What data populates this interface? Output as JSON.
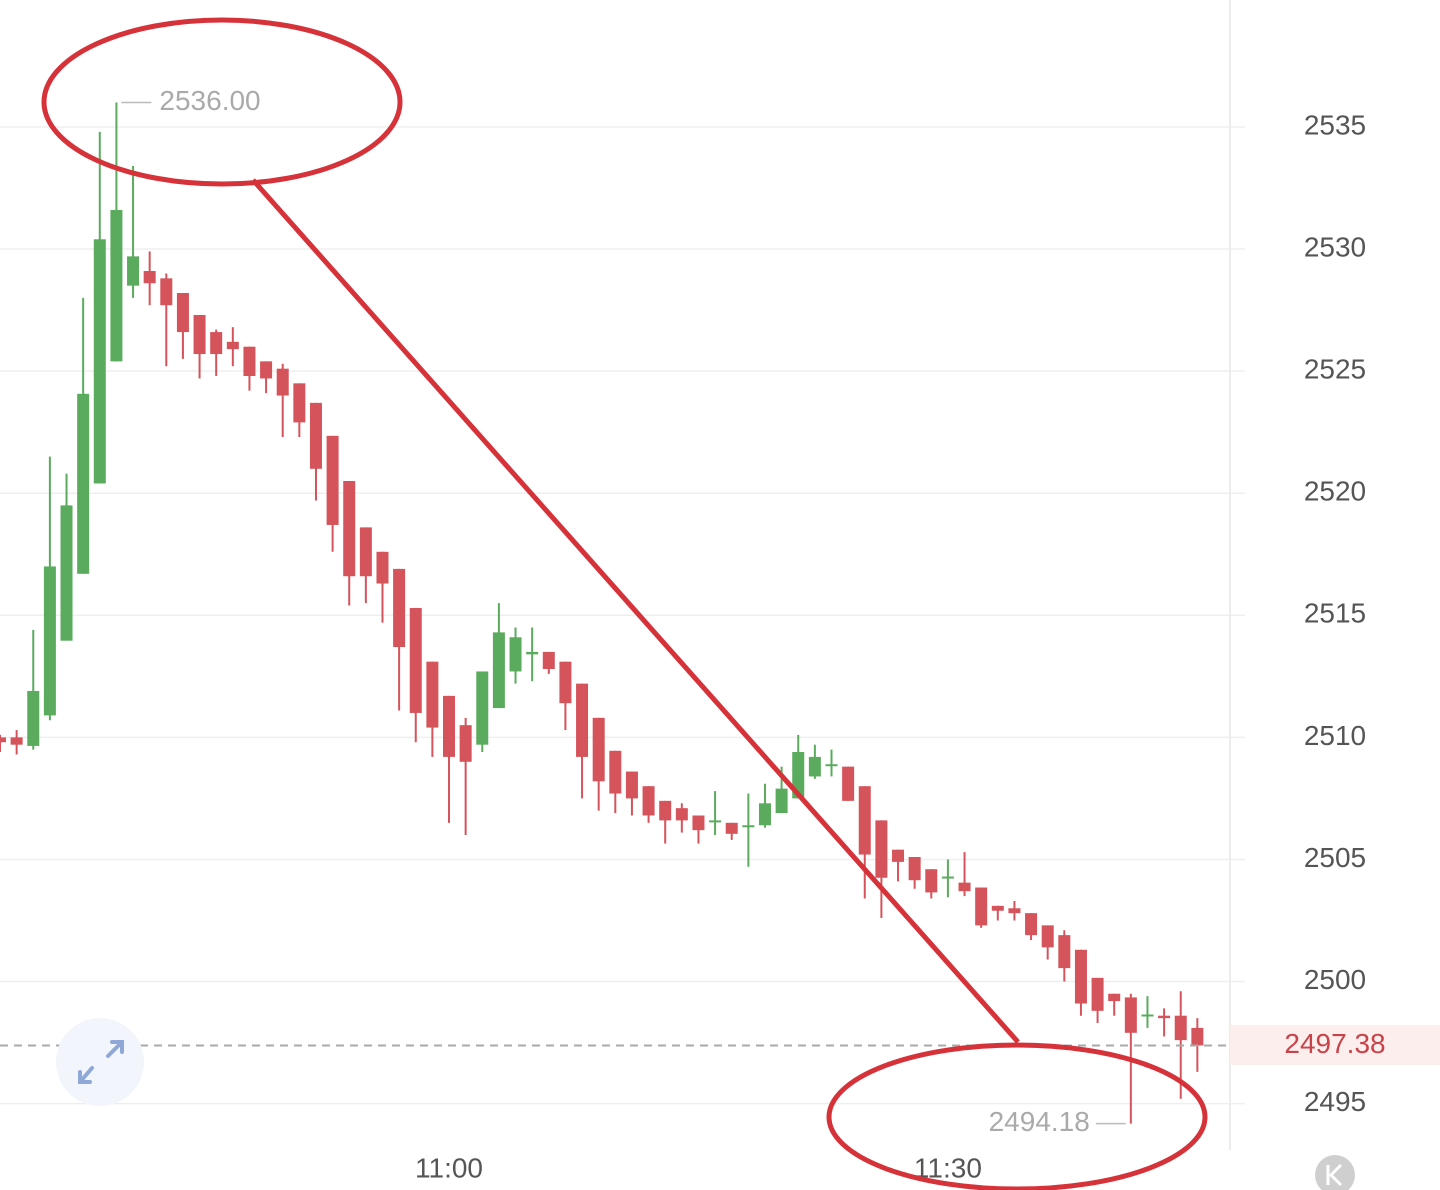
{
  "chart_data": {
    "type": "candlestick",
    "categories": [
      null,
      null,
      null,
      null,
      null,
      null,
      null,
      null,
      null,
      null,
      null,
      null,
      null,
      null,
      null,
      null,
      null,
      null,
      null,
      null,
      null,
      null,
      null,
      null,
      null,
      null,
      null,
      "11:00",
      null,
      null,
      null,
      null,
      null,
      null,
      null,
      null,
      null,
      null,
      null,
      null,
      null,
      null,
      null,
      null,
      null,
      null,
      null,
      null,
      null,
      null,
      null,
      null,
      null,
      null,
      null,
      null,
      null,
      "11:30",
      null,
      null,
      null,
      null,
      null,
      null,
      null,
      null,
      null,
      null,
      null,
      null,
      null,
      null,
      null
    ],
    "open": [
      2510,
      2510,
      2509.65,
      2510.9,
      2513.96,
      2516.7,
      2520.4,
      2525.4,
      2528.5,
      2529.1,
      2528.8,
      2528.2,
      2527.3,
      2526.6,
      2526.2,
      2526.0,
      2525.4,
      2525.1,
      2524.5,
      2523.7,
      2522.35,
      2520.5,
      2518.6,
      2517.6,
      2516.9,
      2515.3,
      2513.1,
      2511.7,
      2510.5,
      2509.7,
      2511.2,
      2512.7,
      2513.4,
      2513.5,
      2513.1,
      2512.2,
      2510.8,
      2509.45,
      2508.6,
      2508.0,
      2507.4,
      2507.1,
      2506.8,
      2506.55,
      2506.5,
      2506.35,
      2506.4,
      2506.9,
      2507.5,
      2508.4,
      2508.85,
      2508.8,
      2508.0,
      2506.6,
      2505.4,
      2505.1,
      2504.6,
      2504.25,
      2504.05,
      2503.85,
      2503.1,
      2503.0,
      2502.8,
      2502.3,
      2501.9,
      2501.3,
      2500.15,
      2499.5,
      2499.35,
      2498.6,
      2498.6,
      2498.6,
      2498.1
    ],
    "high": [
      2510.1,
      2510.3,
      2514.4,
      2521.5,
      2520.8,
      2528.0,
      2534.8,
      2536.0,
      2533.4,
      2529.9,
      2529.0,
      2528.2,
      2527.3,
      2526.7,
      2526.8,
      2526.0,
      2525.4,
      2525.3,
      2524.5,
      2523.7,
      2522.35,
      2520.5,
      2518.6,
      2517.6,
      2516.9,
      2515.3,
      2513.1,
      2511.7,
      2510.8,
      2512.7,
      2515.5,
      2514.5,
      2514.5,
      2513.5,
      2513.1,
      2512.2,
      2510.8,
      2509.45,
      2508.6,
      2508.0,
      2507.4,
      2507.3,
      2506.8,
      2507.8,
      2506.5,
      2507.7,
      2508.1,
      2508.8,
      2510.1,
      2509.7,
      2509.5,
      2508.8,
      2508.0,
      2506.6,
      2505.4,
      2505.1,
      2504.6,
      2505.0,
      2505.3,
      2503.85,
      2503.1,
      2503.3,
      2502.8,
      2502.3,
      2502.1,
      2501.3,
      2500.15,
      2499.5,
      2499.5,
      2499.4,
      2498.9,
      2499.6,
      2498.5
    ],
    "low": [
      2509.4,
      2509.3,
      2509.5,
      2510.7,
      2513.96,
      2516.7,
      2520.4,
      2525.4,
      2528.0,
      2527.7,
      2525.2,
      2525.5,
      2524.7,
      2524.8,
      2525.2,
      2524.2,
      2524.1,
      2522.3,
      2522.3,
      2519.7,
      2517.6,
      2515.4,
      2515.5,
      2514.7,
      2511.1,
      2509.8,
      2509.2,
      2506.5,
      2506.0,
      2509.4,
      2511.2,
      2512.2,
      2512.3,
      2512.6,
      2510.3,
      2507.5,
      2507.0,
      2506.9,
      2506.8,
      2506.5,
      2505.65,
      2506.1,
      2505.65,
      2506.0,
      2505.8,
      2504.7,
      2506.3,
      2506.9,
      2507.5,
      2508.3,
      2508.4,
      2507.4,
      2503.4,
      2502.6,
      2504.1,
      2503.8,
      2503.4,
      2503.45,
      2503.5,
      2502.2,
      2502.5,
      2502.5,
      2501.7,
      2500.9,
      2500.0,
      2498.6,
      2498.3,
      2498.6,
      2494.18,
      2498.1,
      2497.75,
      2495.2,
      2496.3
    ],
    "close": [
      2509.8,
      2509.7,
      2511.9,
      2517.0,
      2519.5,
      2524.07,
      2530.4,
      2531.6,
      2529.7,
      2528.6,
      2527.7,
      2526.6,
      2525.7,
      2525.7,
      2525.9,
      2524.8,
      2524.7,
      2524.0,
      2522.9,
      2521.0,
      2518.7,
      2516.6,
      2516.6,
      2516.3,
      2513.7,
      2511.0,
      2510.4,
      2509.2,
      2509.0,
      2512.7,
      2514.3,
      2514.1,
      2513.5,
      2512.8,
      2511.4,
      2509.2,
      2508.2,
      2507.7,
      2507.5,
      2506.8,
      2506.6,
      2506.6,
      2506.2,
      2506.6,
      2506.05,
      2506.4,
      2507.3,
      2507.9,
      2509.4,
      2509.2,
      2508.9,
      2507.4,
      2505.2,
      2504.25,
      2504.9,
      2504.15,
      2503.65,
      2504.3,
      2503.7,
      2502.3,
      2502.9,
      2502.8,
      2501.9,
      2501.4,
      2500.55,
      2499.1,
      2498.8,
      2499.2,
      2497.9,
      2498.65,
      2498.5,
      2497.6,
      2497.38
    ],
    "up_color": "#5bab5e",
    "down_color": "#d5535a",
    "ylim": [
      2493.1,
      2540.2
    ],
    "yticks": [
      2495,
      2500,
      2505,
      2510,
      2515,
      2520,
      2525,
      2530,
      2535
    ],
    "grid": true,
    "high_marker": {
      "value": 2536.0,
      "label": "2536.00"
    },
    "low_marker": 2494.18,
    "last_price": {
      "value": 2497.38,
      "label": "2497.38"
    }
  }
}
